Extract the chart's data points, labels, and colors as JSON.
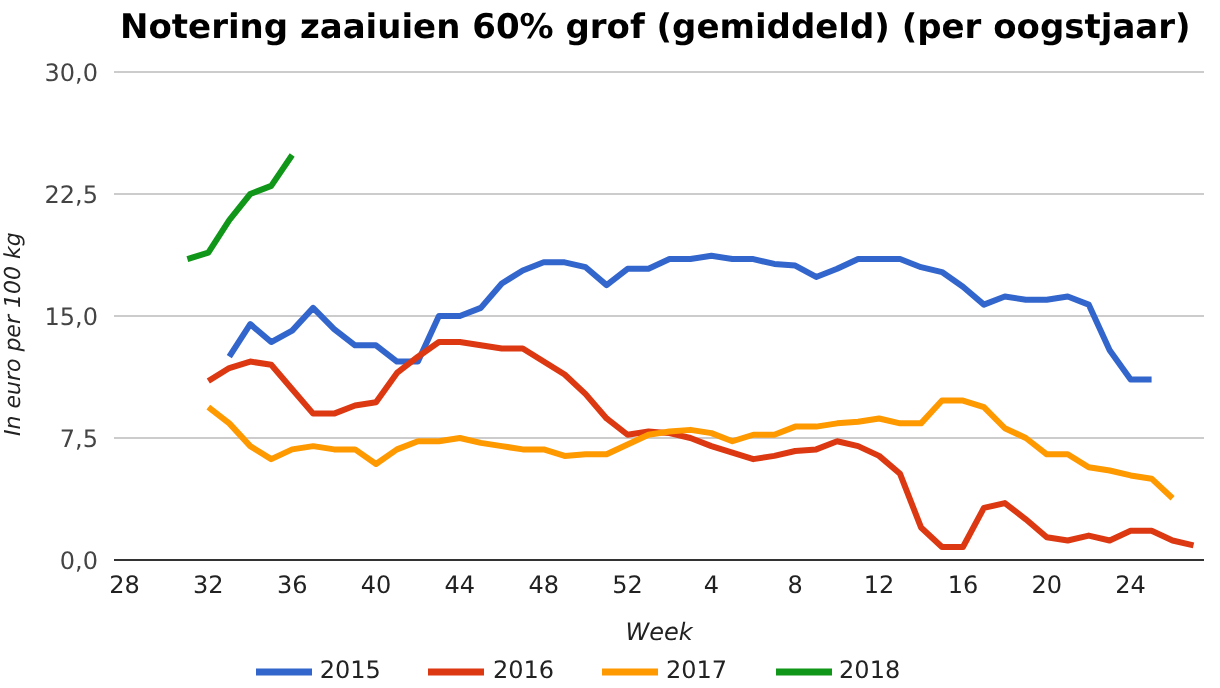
{
  "chart_data": {
    "type": "line",
    "title": "Notering zaaiuien 60% grof (gemiddeld) (per oogstjaar)",
    "xlabel": "Week",
    "ylabel": "In euro per 100 kg",
    "categories": [
      "28",
      null,
      null,
      null,
      "32",
      null,
      null,
      null,
      "36",
      null,
      null,
      null,
      "40",
      null,
      null,
      null,
      "44",
      null,
      null,
      null,
      "48",
      null,
      null,
      null,
      "52",
      null,
      null,
      null,
      "4",
      null,
      null,
      null,
      "8",
      null,
      null,
      null,
      "12",
      null,
      null,
      null,
      "16",
      null,
      null,
      null,
      "20",
      null,
      null,
      null,
      "24",
      null,
      null,
      null
    ],
    "series": [
      {
        "name": "2015",
        "color": "#3366cc",
        "values": [
          null,
          null,
          null,
          null,
          null,
          12.5,
          14.5,
          13.4,
          14.1,
          15.5,
          14.2,
          13.2,
          13.2,
          12.2,
          12.2,
          15.0,
          15.0,
          15.5,
          17.0,
          17.8,
          18.3,
          18.3,
          18.0,
          16.9,
          17.9,
          17.9,
          18.5,
          18.5,
          18.7,
          18.5,
          18.5,
          18.2,
          18.1,
          17.4,
          17.9,
          18.5,
          18.5,
          18.5,
          18.0,
          17.7,
          16.8,
          15.7,
          16.2,
          16.0,
          16.0,
          16.2,
          15.7,
          12.9,
          11.1,
          11.1,
          null,
          null
        ]
      },
      {
        "name": "2016",
        "color": "#dc3912",
        "values": [
          null,
          null,
          null,
          null,
          11.0,
          11.8,
          12.2,
          12.0,
          10.5,
          9.0,
          9.0,
          9.5,
          9.7,
          11.5,
          12.5,
          13.4,
          13.4,
          13.2,
          13.0,
          13.0,
          12.2,
          11.4,
          10.2,
          8.7,
          7.7,
          7.9,
          7.8,
          7.5,
          7.0,
          6.6,
          6.2,
          6.4,
          6.7,
          6.8,
          7.3,
          7.0,
          6.4,
          5.3,
          2.0,
          0.8,
          0.8,
          3.2,
          3.5,
          2.5,
          1.4,
          1.2,
          1.5,
          1.2,
          1.8,
          1.8,
          1.2,
          0.9
        ]
      },
      {
        "name": "2017",
        "color": "#ff9900",
        "values": [
          null,
          null,
          null,
          null,
          9.4,
          8.4,
          7.0,
          6.2,
          6.8,
          7.0,
          6.8,
          6.8,
          5.9,
          6.8,
          7.3,
          7.3,
          7.5,
          7.2,
          7.0,
          6.8,
          6.8,
          6.4,
          6.5,
          6.5,
          7.1,
          7.7,
          7.9,
          8.0,
          7.8,
          7.3,
          7.7,
          7.7,
          8.2,
          8.2,
          8.4,
          8.5,
          8.7,
          8.4,
          8.4,
          9.8,
          9.8,
          9.4,
          8.1,
          7.5,
          6.5,
          6.5,
          5.7,
          5.5,
          5.2,
          5.0,
          3.8,
          null
        ]
      },
      {
        "name": "2018",
        "color": "#109618",
        "values": [
          null,
          null,
          null,
          18.5,
          18.9,
          20.9,
          22.5,
          23.0,
          24.9,
          null,
          null,
          null,
          null,
          null,
          null,
          null,
          null,
          null,
          null,
          null,
          null,
          null,
          null,
          null,
          null,
          null,
          null,
          null,
          null,
          null,
          null,
          null,
          null,
          null,
          null,
          null,
          null,
          null,
          null,
          null,
          null,
          null,
          null,
          null,
          null,
          null,
          null,
          null,
          null,
          null,
          null,
          null
        ]
      }
    ],
    "ylim": [
      0,
      30
    ],
    "yticks": [
      {
        "value": 0,
        "label": "0,0"
      },
      {
        "value": 7.5,
        "label": "7,5"
      },
      {
        "value": 15,
        "label": "15,0"
      },
      {
        "value": 22.5,
        "label": "22,5"
      },
      {
        "value": 30,
        "label": "30,0"
      }
    ],
    "grid": "y",
    "legend": "bottom",
    "marker": "none",
    "line_style": "solid"
  }
}
